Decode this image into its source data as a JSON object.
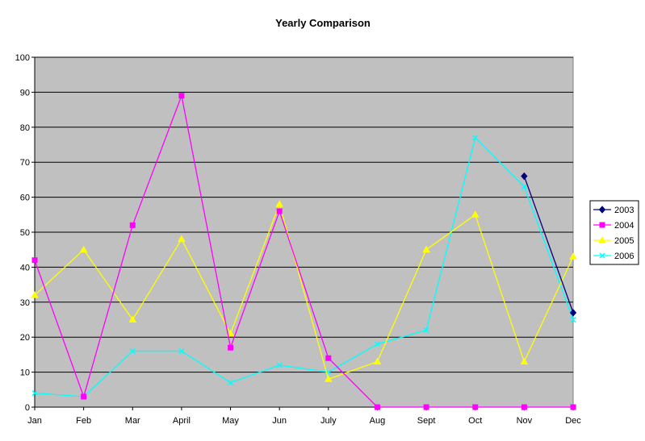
{
  "chart_data": {
    "type": "line",
    "title": "Yearly Comparison",
    "xlabel": "",
    "ylabel": "",
    "categories": [
      "Jan",
      "Feb",
      "Mar",
      "April",
      "May",
      "Jun",
      "July",
      "Aug",
      "Sept",
      "Oct",
      "Nov",
      "Dec"
    ],
    "ylim": [
      0,
      100
    ],
    "yticks": [
      0,
      10,
      20,
      30,
      40,
      50,
      60,
      70,
      80,
      90,
      100
    ],
    "grid": true,
    "legend_position": "right",
    "plot_background": "#c0c0c0",
    "series": [
      {
        "name": "2003",
        "color": "#000080",
        "marker": "diamond",
        "values": [
          null,
          null,
          null,
          null,
          null,
          null,
          null,
          null,
          null,
          null,
          66,
          27
        ]
      },
      {
        "name": "2004",
        "color": "#ff00ff",
        "marker": "square",
        "values": [
          42,
          3,
          52,
          89,
          17,
          56,
          14,
          0,
          0,
          0,
          0,
          0
        ]
      },
      {
        "name": "2005",
        "color": "#ffff00",
        "marker": "triangle",
        "values": [
          32,
          45,
          25,
          48,
          21,
          58,
          8,
          13,
          45,
          55,
          13,
          43
        ]
      },
      {
        "name": "2006",
        "color": "#00ffff",
        "marker": "x",
        "values": [
          4,
          3,
          16,
          16,
          7,
          12,
          10,
          18,
          22,
          77,
          63,
          25
        ]
      }
    ]
  }
}
